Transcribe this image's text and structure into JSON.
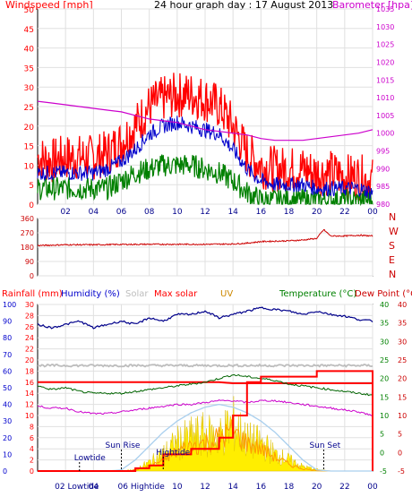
{
  "title": "24 hour graph day : 17 August 2013",
  "colors": {
    "red": "#ff0000",
    "darkred": "#cc0000",
    "blue": "#0000cc",
    "navy": "#00008b",
    "green": "#008000",
    "magenta": "#cc00cc",
    "gray": "#bdbdbd",
    "yellow": "#ffee00",
    "orange": "#ff9900",
    "lightblue": "#a9cfee",
    "darkgreen": "#006400"
  },
  "chart_data": [
    {
      "type": "line",
      "name": "wind-baro",
      "title": "24 hour graph day : 17 August 2013",
      "ylabel_left": "Windspeed [mph]",
      "ylabel_right": "Barometer [hpa]",
      "x_ticks": [
        "02",
        "04",
        "06",
        "08",
        "10",
        "12",
        "14",
        "16",
        "18",
        "20",
        "22",
        "00"
      ],
      "x_tick_hours": [
        2,
        4,
        6,
        8,
        10,
        12,
        14,
        16,
        18,
        20,
        22,
        24
      ],
      "ylim_left": [
        0,
        50
      ],
      "yticks_left": [
        0,
        5,
        10,
        15,
        20,
        25,
        30,
        35,
        40,
        45,
        50
      ],
      "ylim_right": [
        980,
        1035
      ],
      "yticks_right": [
        980,
        985,
        990,
        995,
        1000,
        1005,
        1010,
        1015,
        1020,
        1025,
        1030,
        1035
      ],
      "hours": [
        0,
        1,
        2,
        3,
        4,
        5,
        6,
        7,
        8,
        9,
        10,
        11,
        12,
        13,
        14,
        15,
        16,
        17,
        18,
        19,
        20,
        21,
        22,
        23,
        24
      ],
      "series": [
        {
          "values": [
            12,
            11,
            12,
            12,
            12,
            13,
            16,
            20,
            25,
            27,
            28,
            28,
            27,
            25,
            20,
            13,
            10,
            9,
            9,
            9,
            8,
            8,
            7,
            7,
            6
          ]
        },
        {
          "values": [
            8,
            8,
            8,
            8,
            8,
            9,
            11,
            14,
            18,
            20,
            21,
            20,
            19,
            18,
            14,
            9,
            6,
            5,
            5,
            5,
            4,
            4,
            4,
            4,
            3
          ]
        },
        {
          "values": [
            4,
            4,
            4,
            4,
            4,
            4,
            6,
            8,
            9,
            10,
            10,
            10,
            9,
            8,
            6,
            3,
            1,
            1,
            1,
            1,
            1,
            1,
            1,
            1,
            1
          ]
        },
        {
          "axis": "right",
          "values": [
            1009,
            1008.5,
            1008,
            1007.5,
            1007,
            1006.5,
            1006,
            1005,
            1004,
            1003.5,
            1003,
            1002,
            1001,
            1000.5,
            1000,
            999.5,
            998.5,
            998,
            998,
            998,
            998.5,
            999,
            999.5,
            1000,
            1001
          ]
        }
      ]
    },
    {
      "type": "line",
      "name": "direction",
      "ylim": [
        0,
        360
      ],
      "yticks": [
        0,
        90,
        180,
        270,
        360
      ],
      "right_labels": [
        "N",
        "W",
        "S",
        "E",
        "N"
      ],
      "hours": [
        0,
        2,
        4,
        6,
        8,
        10,
        12,
        14,
        15,
        16,
        18,
        19,
        20,
        20.5,
        21,
        22,
        23,
        24
      ],
      "values": [
        190,
        195,
        195,
        197,
        198,
        198,
        198,
        200,
        205,
        215,
        220,
        225,
        235,
        290,
        250,
        250,
        255,
        250
      ]
    },
    {
      "type": "line",
      "name": "rain-temp-solar",
      "legend": [
        "Rainfall (mm)",
        "Humidity (%)",
        "Solar",
        "Max solar",
        "UV",
        "Temperature (°C)",
        "Dew Point (°C)"
      ],
      "ylim_left": [
        0,
        30
      ],
      "yticks_left": [
        0,
        2,
        4,
        6,
        8,
        10,
        12,
        14,
        16,
        18,
        20,
        22,
        24,
        26,
        28,
        30
      ],
      "ylim_humidity": [
        0,
        100
      ],
      "yticks_humidity": [
        0,
        10,
        20,
        30,
        40,
        50,
        60,
        70,
        80,
        90,
        100
      ],
      "ylim_right": [
        -5,
        40
      ],
      "yticks_right": [
        -5,
        0,
        5,
        10,
        15,
        20,
        25,
        30,
        35,
        40
      ],
      "x_ticks": [
        "02",
        "04",
        "06",
        "08",
        "10",
        "12",
        "14",
        "16",
        "18",
        "20",
        "22",
        "00"
      ],
      "x_tick_hours": [
        2,
        4,
        6,
        8,
        10,
        12,
        14,
        16,
        18,
        20,
        22,
        24
      ],
      "annotations": {
        "sunrise_label": "Sun Rise",
        "sunrise_hour": 6,
        "sunset_label": "Sun Set",
        "sunset_hour": 20.5,
        "lowtide_label": "Lowtide",
        "lowtide_hour": 3,
        "lowtide_bottom": "02 Lowtide",
        "hightide_label": "Hightide",
        "hightide_hour": 9,
        "hightide_bottom": "06 Hightide"
      },
      "hours": [
        0,
        1,
        2,
        3,
        4,
        5,
        6,
        7,
        8,
        9,
        10,
        11,
        12,
        13,
        14,
        15,
        16,
        17,
        18,
        19,
        20,
        21,
        22,
        23,
        24
      ],
      "series": [
        {
          "key": "humidity",
          "values": [
            88,
            86,
            88,
            90,
            86,
            88,
            90,
            88,
            92,
            90,
            94,
            94,
            96,
            92,
            94,
            96,
            98,
            97,
            96,
            94,
            96,
            94,
            93,
            91,
            90
          ]
        },
        {
          "key": "rainfall",
          "values": [
            0,
            0,
            0,
            0,
            0,
            0,
            0,
            0.5,
            1,
            3,
            3,
            4,
            4,
            6,
            10,
            16,
            17,
            17,
            17,
            17,
            18,
            18,
            18,
            18,
            18
          ]
        },
        {
          "key": "temperature",
          "values": [
            18,
            17,
            17.5,
            16.5,
            16,
            16,
            16,
            16.5,
            17,
            17.5,
            18,
            18.5,
            19,
            20,
            21,
            20.5,
            20,
            19.5,
            18.5,
            18,
            17.5,
            17,
            16.5,
            16,
            15.5
          ]
        },
        {
          "key": "dewpoint",
          "values": [
            12.5,
            12,
            12,
            11,
            10.5,
            10.5,
            11,
            11.5,
            12,
            12.5,
            13,
            13,
            13.5,
            14,
            14,
            13.5,
            14,
            14,
            13.5,
            13,
            12.5,
            12,
            11.5,
            11,
            10
          ]
        },
        {
          "key": "gray_line",
          "values": [
            19,
            19,
            19,
            19,
            19,
            19,
            19,
            19,
            19,
            19,
            19,
            19,
            19,
            19,
            19,
            19,
            19,
            19,
            19,
            19,
            19,
            19,
            19,
            19,
            19
          ]
        },
        {
          "key": "maxsolar_red",
          "values": [
            16,
            16,
            16,
            16,
            16,
            16,
            16,
            16,
            16,
            16,
            16,
            16,
            16,
            16,
            15.8,
            15.8,
            15.8,
            15.8,
            15.8,
            15.8,
            15.8,
            15.8,
            15.8,
            15.8,
            15.8
          ]
        },
        {
          "key": "solar",
          "values": [
            0,
            0,
            0,
            0,
            0,
            0,
            0,
            0.3,
            1.5,
            3,
            5,
            6,
            6.5,
            6,
            8.5,
            5.5,
            5,
            3,
            2,
            0.8,
            0.3,
            0,
            0,
            0,
            0
          ]
        },
        {
          "key": "uv",
          "values": [
            0,
            0,
            0,
            0,
            0,
            0,
            0,
            0.2,
            0.8,
            2,
            3.5,
            4.5,
            5,
            6,
            7,
            5,
            4,
            2.5,
            1.2,
            0.4,
            0.1,
            0,
            0,
            0,
            0
          ]
        },
        {
          "key": "maxsolar_curve",
          "values": [
            0,
            0,
            0,
            0,
            0,
            0,
            0.2,
            2,
            4.5,
            7,
            9,
            10.5,
            11.5,
            12,
            11.5,
            10.5,
            9,
            7,
            4.5,
            2,
            0.2,
            0,
            0,
            0,
            0
          ]
        }
      ]
    }
  ]
}
